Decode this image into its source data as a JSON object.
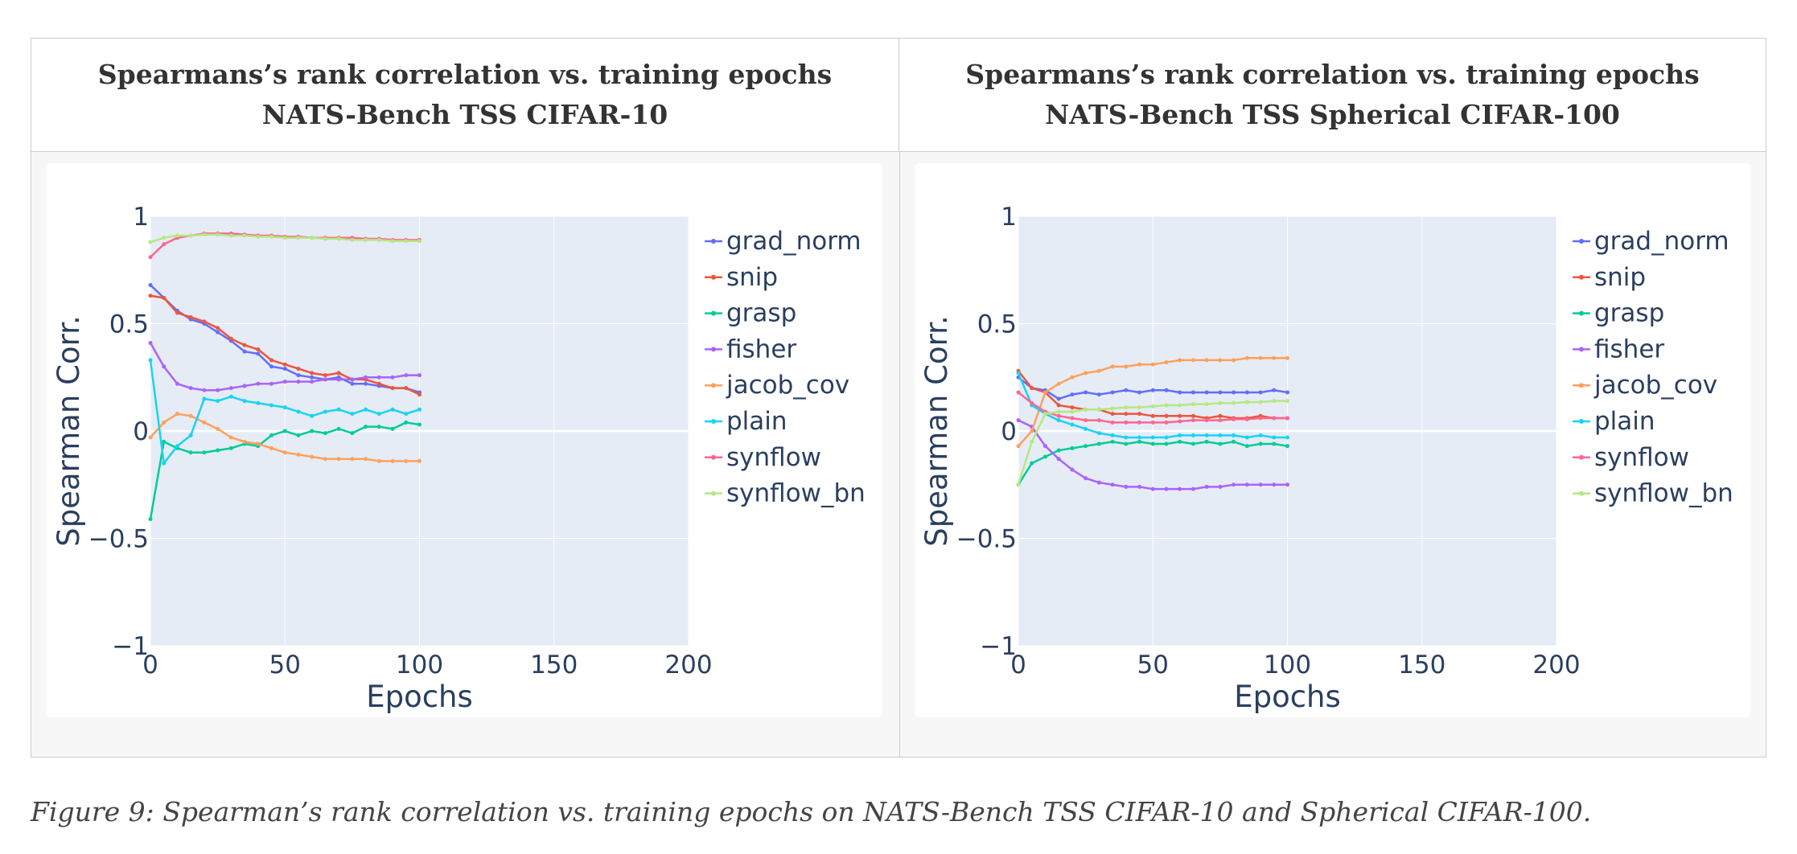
{
  "colors": {
    "grad_norm": "#636efa",
    "snip": "#EF553B",
    "grasp": "#00cc96",
    "fisher": "#ab63fa",
    "jacob_cov": "#FFA15A",
    "plain": "#19d3f3",
    "synflow": "#FF6692",
    "synflow_bn": "#B6E880"
  },
  "caption": "Figure 9: Spearman’s rank correlation vs. training epochs on NATS-Bench TSS CIFAR-10 and Spherical CIFAR-100.",
  "chart_data": [
    {
      "type": "line",
      "title": [
        "Spearmans’s rank correlation vs. training epochs",
        "NATS-Bench TSS CIFAR-10"
      ],
      "xlabel": "Epochs",
      "ylabel": "Spearman Corr.",
      "xlim": [
        0,
        200
      ],
      "ylim": [
        -1,
        1
      ],
      "xticks": [
        "0",
        "50",
        "100",
        "150",
        "200"
      ],
      "yticks": [
        "−1",
        "−0.5",
        "0",
        "0.5",
        "1"
      ],
      "grid": true,
      "legend": "right",
      "x": [
        0,
        5,
        10,
        15,
        20,
        25,
        30,
        35,
        40,
        45,
        50,
        55,
        60,
        65,
        70,
        75,
        80,
        85,
        90,
        95,
        100
      ],
      "series": [
        {
          "name": "grad_norm",
          "values": [
            0.68,
            0.62,
            0.56,
            0.52,
            0.5,
            0.46,
            0.42,
            0.37,
            0.36,
            0.3,
            0.29,
            0.26,
            0.25,
            0.24,
            0.25,
            0.22,
            0.22,
            0.21,
            0.2,
            0.2,
            0.18
          ]
        },
        {
          "name": "snip",
          "values": [
            0.63,
            0.62,
            0.55,
            0.53,
            0.51,
            0.48,
            0.43,
            0.4,
            0.38,
            0.33,
            0.31,
            0.29,
            0.27,
            0.26,
            0.27,
            0.24,
            0.24,
            0.22,
            0.2,
            0.2,
            0.17
          ]
        },
        {
          "name": "grasp",
          "values": [
            -0.41,
            -0.05,
            -0.08,
            -0.1,
            -0.1,
            -0.09,
            -0.08,
            -0.06,
            -0.07,
            -0.02,
            0.0,
            -0.02,
            0.0,
            -0.01,
            0.01,
            -0.01,
            0.02,
            0.02,
            0.01,
            0.04,
            0.03
          ]
        },
        {
          "name": "fisher",
          "values": [
            0.41,
            0.3,
            0.22,
            0.2,
            0.19,
            0.19,
            0.2,
            0.21,
            0.22,
            0.22,
            0.23,
            0.23,
            0.23,
            0.24,
            0.24,
            0.24,
            0.25,
            0.25,
            0.25,
            0.26,
            0.26
          ]
        },
        {
          "name": "jacob_cov",
          "values": [
            -0.03,
            0.04,
            0.08,
            0.07,
            0.04,
            0.01,
            -0.03,
            -0.05,
            -0.06,
            -0.08,
            -0.1,
            -0.11,
            -0.12,
            -0.13,
            -0.13,
            -0.13,
            -0.13,
            -0.14,
            -0.14,
            -0.14,
            -0.14
          ]
        },
        {
          "name": "plain",
          "values": [
            0.33,
            -0.15,
            -0.07,
            -0.02,
            0.15,
            0.14,
            0.16,
            0.14,
            0.13,
            0.12,
            0.11,
            0.09,
            0.07,
            0.09,
            0.1,
            0.08,
            0.1,
            0.08,
            0.1,
            0.08,
            0.1
          ]
        },
        {
          "name": "synflow",
          "values": [
            0.81,
            0.87,
            0.9,
            0.91,
            0.92,
            0.92,
            0.92,
            0.915,
            0.91,
            0.91,
            0.905,
            0.905,
            0.9,
            0.9,
            0.9,
            0.9,
            0.895,
            0.895,
            0.89,
            0.89,
            0.89
          ]
        },
        {
          "name": "synflow_bn",
          "values": [
            0.88,
            0.9,
            0.91,
            0.91,
            0.915,
            0.915,
            0.91,
            0.91,
            0.905,
            0.905,
            0.9,
            0.9,
            0.9,
            0.895,
            0.895,
            0.89,
            0.89,
            0.89,
            0.885,
            0.885,
            0.885
          ]
        }
      ]
    },
    {
      "type": "line",
      "title": [
        "Spearmans’s rank correlation vs. training epochs",
        "NATS-Bench TSS Spherical CIFAR-100"
      ],
      "xlabel": "Epochs",
      "ylabel": "Spearman Corr.",
      "xlim": [
        0,
        200
      ],
      "ylim": [
        -1,
        1
      ],
      "xticks": [
        "0",
        "50",
        "100",
        "150",
        "200"
      ],
      "yticks": [
        "−1",
        "−0.5",
        "0",
        "0.5",
        "1"
      ],
      "grid": true,
      "legend": "right",
      "x": [
        0,
        5,
        10,
        15,
        20,
        25,
        30,
        35,
        40,
        45,
        50,
        55,
        60,
        65,
        70,
        75,
        80,
        85,
        90,
        95,
        100
      ],
      "series": [
        {
          "name": "grad_norm",
          "values": [
            0.25,
            0.2,
            0.19,
            0.15,
            0.17,
            0.18,
            0.17,
            0.18,
            0.19,
            0.18,
            0.19,
            0.19,
            0.18,
            0.18,
            0.18,
            0.18,
            0.18,
            0.18,
            0.18,
            0.19,
            0.18
          ]
        },
        {
          "name": "snip",
          "values": [
            0.28,
            0.2,
            0.18,
            0.12,
            0.11,
            0.1,
            0.1,
            0.08,
            0.08,
            0.08,
            0.07,
            0.07,
            0.07,
            0.07,
            0.06,
            0.07,
            0.06,
            0.06,
            0.07,
            0.06,
            0.06
          ]
        },
        {
          "name": "grasp",
          "values": [
            -0.25,
            -0.15,
            -0.12,
            -0.09,
            -0.08,
            -0.07,
            -0.06,
            -0.05,
            -0.06,
            -0.05,
            -0.06,
            -0.06,
            -0.05,
            -0.06,
            -0.05,
            -0.06,
            -0.05,
            -0.07,
            -0.06,
            -0.06,
            -0.07
          ]
        },
        {
          "name": "fisher",
          "values": [
            0.05,
            0.02,
            -0.07,
            -0.13,
            -0.18,
            -0.22,
            -0.24,
            -0.25,
            -0.26,
            -0.26,
            -0.27,
            -0.27,
            -0.27,
            -0.27,
            -0.26,
            -0.26,
            -0.25,
            -0.25,
            -0.25,
            -0.25,
            -0.25
          ]
        },
        {
          "name": "jacob_cov",
          "values": [
            -0.07,
            0.0,
            0.18,
            0.22,
            0.25,
            0.27,
            0.28,
            0.3,
            0.3,
            0.31,
            0.31,
            0.32,
            0.33,
            0.33,
            0.33,
            0.33,
            0.33,
            0.34,
            0.34,
            0.34,
            0.34
          ]
        },
        {
          "name": "plain",
          "values": [
            0.27,
            0.12,
            0.08,
            0.05,
            0.03,
            0.01,
            -0.01,
            -0.02,
            -0.03,
            -0.03,
            -0.03,
            -0.03,
            -0.02,
            -0.02,
            -0.02,
            -0.02,
            -0.02,
            -0.03,
            -0.02,
            -0.03,
            -0.03
          ]
        },
        {
          "name": "synflow",
          "values": [
            0.18,
            0.13,
            0.09,
            0.07,
            0.06,
            0.05,
            0.05,
            0.04,
            0.04,
            0.04,
            0.04,
            0.04,
            0.045,
            0.05,
            0.05,
            0.05,
            0.055,
            0.055,
            0.06,
            0.06,
            0.06
          ]
        },
        {
          "name": "synflow_bn",
          "values": [
            -0.25,
            -0.05,
            0.08,
            0.09,
            0.09,
            0.1,
            0.1,
            0.105,
            0.11,
            0.11,
            0.115,
            0.12,
            0.12,
            0.125,
            0.125,
            0.13,
            0.13,
            0.135,
            0.135,
            0.14,
            0.14
          ]
        }
      ]
    }
  ]
}
